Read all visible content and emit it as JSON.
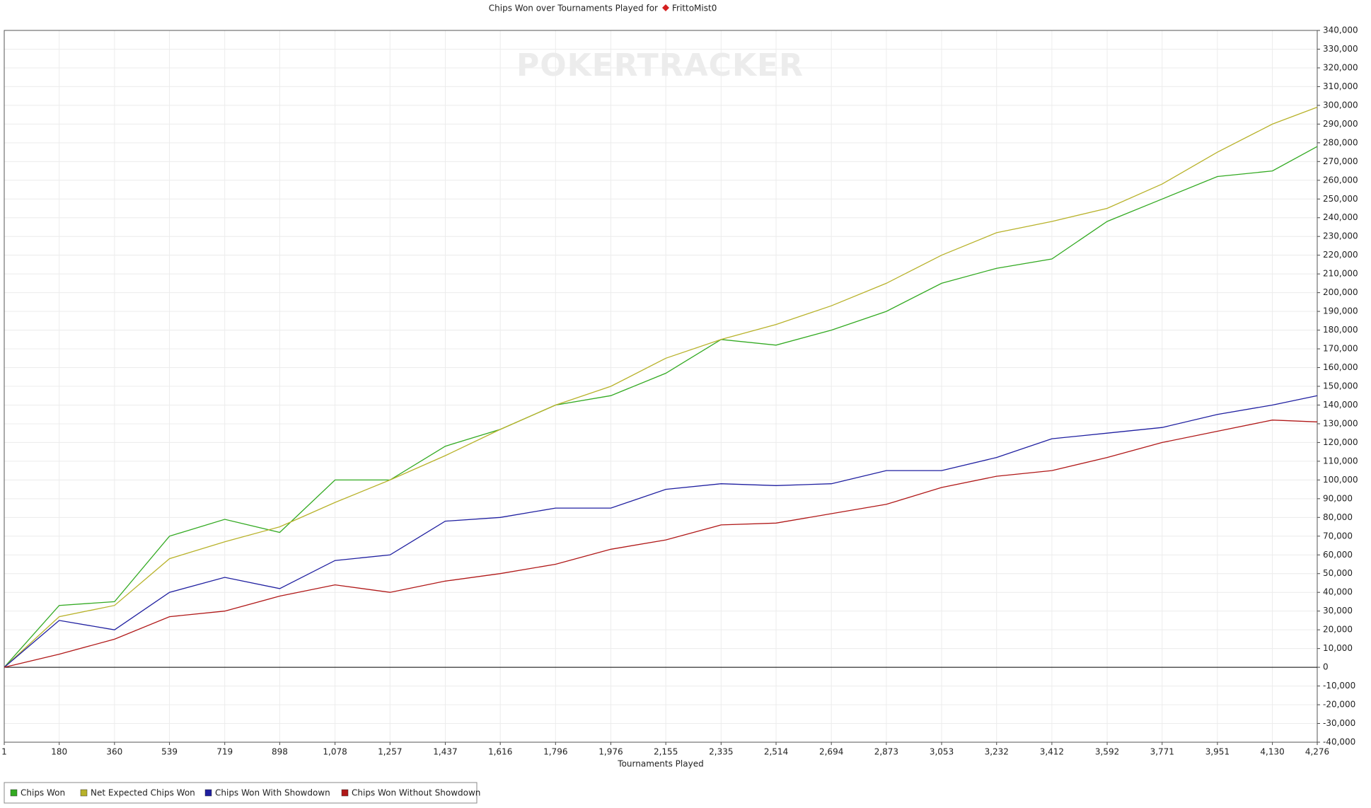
{
  "chart_data": {
    "type": "line",
    "title": "Chips Won over Tournaments Played for",
    "player": "FrittoMist0",
    "watermark": "POKERTRACKER",
    "xlabel": "Tournaments Played",
    "x": [
      1,
      180,
      360,
      539,
      719,
      898,
      1078,
      1257,
      1437,
      1616,
      1796,
      1976,
      2155,
      2335,
      2514,
      2694,
      2873,
      3053,
      3232,
      3412,
      3592,
      3771,
      3951,
      4130,
      4276
    ],
    "series": [
      {
        "name": "Chips Won",
        "color": "#33aa22",
        "values": [
          0,
          33000,
          35000,
          70000,
          79000,
          72000,
          100000,
          100000,
          118000,
          127000,
          140000,
          145000,
          157000,
          175000,
          172000,
          180000,
          190000,
          205000,
          213000,
          218000,
          238000,
          250000,
          262000,
          265000,
          278000
        ]
      },
      {
        "name": "Net Expected Chips Won",
        "color": "#b8b22a",
        "values": [
          0,
          27000,
          33000,
          58000,
          67000,
          75000,
          88000,
          100000,
          113000,
          127000,
          140000,
          150000,
          165000,
          175000,
          183000,
          193000,
          205000,
          220000,
          232000,
          238000,
          245000,
          258000,
          275000,
          290000,
          299000
        ]
      },
      {
        "name": "Chips Won With Showdown",
        "color": "#1f1fa0",
        "values": [
          0,
          25000,
          20000,
          40000,
          48000,
          42000,
          57000,
          60000,
          78000,
          80000,
          85000,
          85000,
          95000,
          98000,
          97000,
          98000,
          105000,
          105000,
          112000,
          122000,
          125000,
          128000,
          135000,
          140000,
          145000
        ]
      },
      {
        "name": "Chips Won Without Showdown",
        "color": "#b01818",
        "values": [
          0,
          7000,
          15000,
          27000,
          30000,
          38000,
          44000,
          40000,
          46000,
          50000,
          55000,
          63000,
          68000,
          76000,
          77000,
          82000,
          87000,
          96000,
          102000,
          105000,
          112000,
          120000,
          126000,
          132000,
          131000
        ]
      }
    ],
    "xlim": [
      1,
      4276
    ],
    "xticks": [
      1,
      180,
      360,
      539,
      719,
      898,
      {
        "value": 1078,
        "label": "1,078"
      },
      {
        "value": 1257,
        "label": "1,257"
      },
      {
        "value": 1437,
        "label": "1,437"
      },
      {
        "value": 1616,
        "label": "1,616"
      },
      {
        "value": 1796,
        "label": "1,796"
      },
      {
        "value": 1976,
        "label": "1,976"
      },
      {
        "value": 2155,
        "label": "2,155"
      },
      {
        "value": 2335,
        "label": "2,335"
      },
      {
        "value": 2514,
        "label": "2,514"
      },
      {
        "value": 2694,
        "label": "2,694"
      },
      {
        "value": 2873,
        "label": "2,873"
      },
      {
        "value": 3053,
        "label": "3,053"
      },
      {
        "value": 3232,
        "label": "3,232"
      },
      {
        "value": 3412,
        "label": "3,412"
      },
      {
        "value": 3592,
        "label": "3,592"
      },
      {
        "value": 3771,
        "label": "3,771"
      },
      {
        "value": 3951,
        "label": "3,951"
      },
      {
        "value": 4130,
        "label": "4,130"
      },
      {
        "value": 4276,
        "label": "4,276"
      }
    ],
    "ylim": [
      -40000,
      340000
    ],
    "yticks": [
      {
        "value": -40000,
        "label": "-40,000"
      },
      {
        "value": -30000,
        "label": "-30,000"
      },
      {
        "value": -20000,
        "label": "-20,000"
      },
      {
        "value": -10000,
        "label": "-10,000"
      },
      0,
      {
        "value": 10000,
        "label": "10,000"
      },
      {
        "value": 20000,
        "label": "20,000"
      },
      {
        "value": 30000,
        "label": "30,000"
      },
      {
        "value": 40000,
        "label": "40,000"
      },
      {
        "value": 50000,
        "label": "50,000"
      },
      {
        "value": 60000,
        "label": "60,000"
      },
      {
        "value": 70000,
        "label": "70,000"
      },
      {
        "value": 80000,
        "label": "80,000"
      },
      {
        "value": 90000,
        "label": "90,000"
      },
      {
        "value": 100000,
        "label": "100,000"
      },
      {
        "value": 110000,
        "label": "110,000"
      },
      {
        "value": 120000,
        "label": "120,000"
      },
      {
        "value": 130000,
        "label": "130,000"
      },
      {
        "value": 140000,
        "label": "140,000"
      },
      {
        "value": 150000,
        "label": "150,000"
      },
      {
        "value": 160000,
        "label": "160,000"
      },
      {
        "value": 170000,
        "label": "170,000"
      },
      {
        "value": 180000,
        "label": "180,000"
      },
      {
        "value": 190000,
        "label": "190,000"
      },
      {
        "value": 200000,
        "label": "200,000"
      },
      {
        "value": 210000,
        "label": "210,000"
      },
      {
        "value": 220000,
        "label": "220,000"
      },
      {
        "value": 230000,
        "label": "230,000"
      },
      {
        "value": 240000,
        "label": "240,000"
      },
      {
        "value": 250000,
        "label": "250,000"
      },
      {
        "value": 260000,
        "label": "260,000"
      },
      {
        "value": 270000,
        "label": "270,000"
      },
      {
        "value": 280000,
        "label": "280,000"
      },
      {
        "value": 290000,
        "label": "290,000"
      },
      {
        "value": 300000,
        "label": "300,000"
      },
      {
        "value": 310000,
        "label": "310,000"
      },
      {
        "value": 320000,
        "label": "320,000"
      },
      {
        "value": 330000,
        "label": "330,000"
      },
      {
        "value": 340000,
        "label": "340,000"
      }
    ],
    "grid": true
  }
}
